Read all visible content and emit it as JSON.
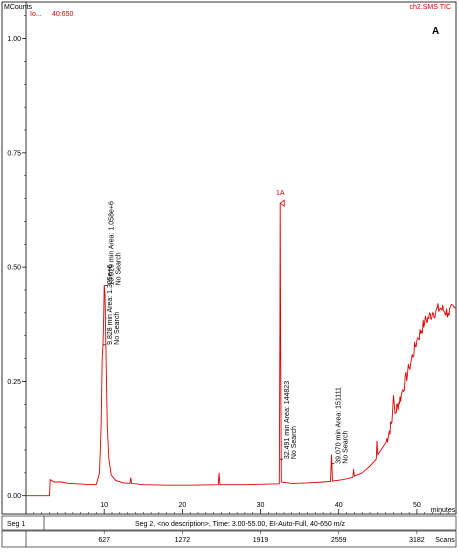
{
  "header": {
    "y_unit_label": "MCounts",
    "left_label": "Io...",
    "mass_range": "40:650",
    "trace_label": "ch2.SMS TIC",
    "panel_letter": "A"
  },
  "colors": {
    "trace": "#e00000",
    "axis": "#000000",
    "background": "#ffffff"
  },
  "chart_data": {
    "type": "line",
    "xlabel": "minutes",
    "ylabel": "MCounts",
    "xlim": [
      0,
      55
    ],
    "ylim": [
      -0.04,
      1.08
    ],
    "x_ticks": [
      10,
      20,
      30,
      40,
      50
    ],
    "y_ticks": [
      0.0,
      0.25,
      0.5,
      0.75,
      1.0
    ],
    "y_tick_labels": [
      "0.00",
      "0.25",
      "0.50",
      "0.75",
      "1.00"
    ],
    "series": [
      {
        "points": [
          [
            0.0,
            0.0
          ],
          [
            3.0,
            0.0
          ],
          [
            3.1,
            0.035
          ],
          [
            3.6,
            0.03
          ],
          [
            4.5,
            0.03
          ],
          [
            5.5,
            0.027
          ],
          [
            6.5,
            0.026
          ],
          [
            7.5,
            0.025
          ],
          [
            8.5,
            0.024
          ],
          [
            9.0,
            0.025
          ],
          [
            9.4,
            0.05
          ],
          [
            9.6,
            0.15
          ],
          [
            9.75,
            0.3
          ],
          [
            9.85,
            0.33
          ],
          [
            9.95,
            0.4
          ],
          [
            10.0,
            0.46
          ],
          [
            10.1,
            0.44
          ],
          [
            10.25,
            0.3
          ],
          [
            10.4,
            0.15
          ],
          [
            10.6,
            0.08
          ],
          [
            10.9,
            0.045
          ],
          [
            11.5,
            0.033
          ],
          [
            12.5,
            0.028
          ],
          [
            13.3,
            0.027
          ],
          [
            13.4,
            0.04
          ],
          [
            13.5,
            0.027
          ],
          [
            15.0,
            0.024
          ],
          [
            18.0,
            0.023
          ],
          [
            21.0,
            0.023
          ],
          [
            24.6,
            0.024
          ],
          [
            24.7,
            0.05
          ],
          [
            24.8,
            0.024
          ],
          [
            28.0,
            0.024
          ],
          [
            32.4,
            0.026
          ],
          [
            32.48,
            0.36
          ],
          [
            32.52,
            0.64
          ],
          [
            32.56,
            0.36
          ],
          [
            32.65,
            0.03
          ],
          [
            34.0,
            0.027
          ],
          [
            36.0,
            0.028
          ],
          [
            38.0,
            0.03
          ],
          [
            38.95,
            0.031
          ],
          [
            39.07,
            0.09
          ],
          [
            39.2,
            0.032
          ],
          [
            40.5,
            0.035
          ],
          [
            41.8,
            0.04
          ],
          [
            41.9,
            0.058
          ],
          [
            42.0,
            0.043
          ],
          [
            43.0,
            0.05
          ],
          [
            44.0,
            0.065
          ],
          [
            44.8,
            0.08
          ],
          [
            44.9,
            0.12
          ],
          [
            45.0,
            0.09
          ],
          [
            46.0,
            0.115
          ],
          [
            46.8,
            0.16
          ],
          [
            47.0,
            0.22
          ],
          [
            47.2,
            0.18
          ],
          [
            48.0,
            0.22
          ],
          [
            49.0,
            0.28
          ],
          [
            50.0,
            0.34
          ],
          [
            51.0,
            0.38
          ],
          [
            52.0,
            0.4
          ],
          [
            53.0,
            0.41
          ],
          [
            54.0,
            0.4
          ],
          [
            55.0,
            0.41
          ]
        ]
      }
    ],
    "annotations": [
      {
        "x": 9.828,
        "y": 0.33,
        "lines": [
          "9.828 min  Area: 1.325e+6",
          "No Search"
        ]
      },
      {
        "x": 10.029,
        "y": 0.46,
        "lines": [
          "10.029 min  Area: 1.058e+6",
          "No Search"
        ]
      },
      {
        "x": 32.491,
        "y": 0.08,
        "lines": [
          "32.491 min  Area: 144823",
          "No Search"
        ]
      },
      {
        "x": 39.07,
        "y": 0.07,
        "lines": [
          "39.070 min  Area: 151111",
          "No Search"
        ]
      }
    ],
    "peak_marker": {
      "x": 32.52,
      "y": 0.64,
      "label": "1A"
    }
  },
  "footer": {
    "segment_label": "Seg 1",
    "segment_description": "Seg 2, <no description>,  Time: 3.00-55.00, EI-Auto-Full, 40-650 m/z",
    "scan_numbers": [
      "627",
      "1272",
      "1919",
      "2559",
      "3182"
    ],
    "scans_label": "Scans"
  }
}
